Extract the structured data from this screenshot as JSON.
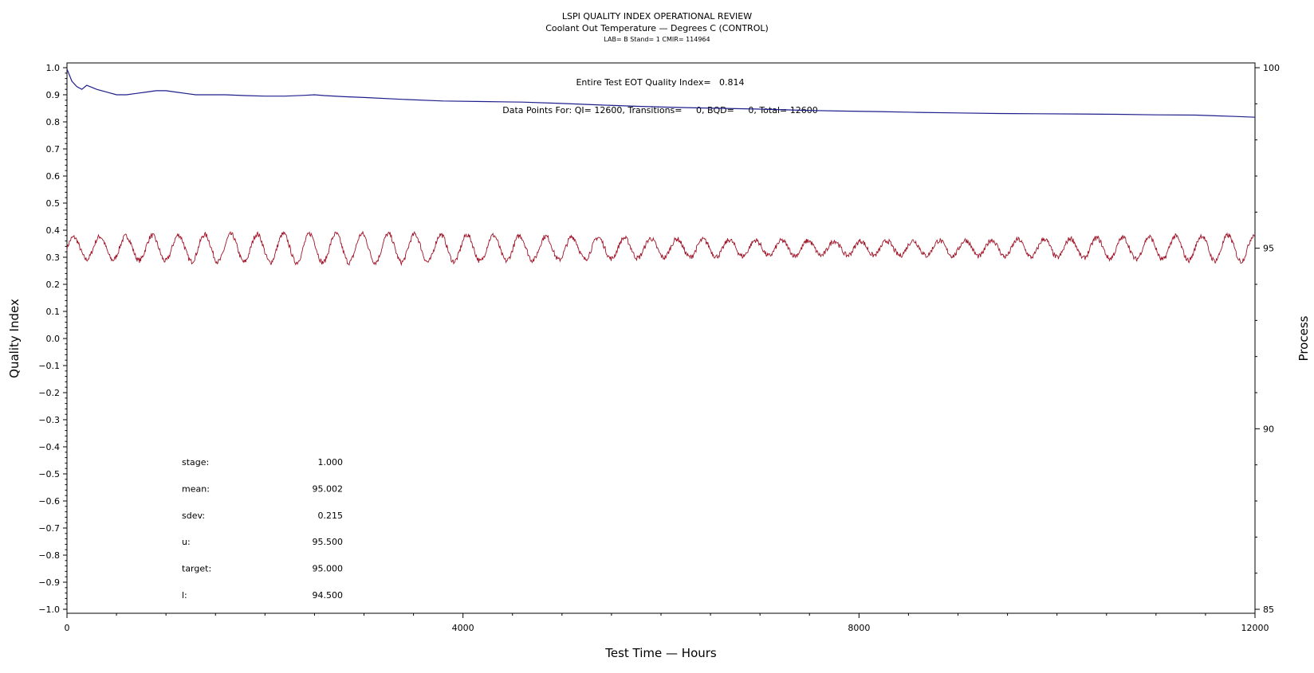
{
  "chart_data": {
    "type": "line",
    "title": "LSPI QUALITY INDEX OPERATIONAL REVIEW",
    "subtitle": "Coolant Out Temperature — Degrees C (CONTROL)",
    "subtitle2": "LAB= B Stand= 1 CMIR= 114964",
    "xlabel": "Test Time — Hours",
    "ylabel": "Quality Index",
    "y2label": "Process",
    "xlim": [
      0,
      12000
    ],
    "ylim": [
      -1.0,
      1.0
    ],
    "y2lim": [
      85,
      100
    ],
    "x_ticks": [
      0,
      4000,
      8000,
      12000
    ],
    "x_tick_labels": [
      "0",
      "4000",
      "8000",
      "12000"
    ],
    "y_ticks": [
      1.0,
      0.9,
      0.8,
      0.7,
      0.6,
      0.5,
      0.4,
      0.3,
      0.2,
      0.1,
      0.0,
      -0.1,
      -0.2,
      -0.3,
      -0.4,
      -0.5,
      -0.6,
      -0.7,
      -0.8,
      -0.9,
      -1.0
    ],
    "y_tick_labels": [
      "1.0",
      "0.9",
      "0.8",
      "0.7",
      "0.6",
      "0.5",
      "0.4",
      "0.3",
      "0.2",
      "0.1",
      "0.0",
      "−0.1",
      "−0.2",
      "−0.3",
      "−0.4",
      "−0.5",
      "−0.6",
      "−0.7",
      "−0.8",
      "−0.9",
      "−1.0"
    ],
    "y2_ticks": [
      100,
      95,
      90,
      85
    ],
    "y2_tick_labels": [
      "100",
      "95",
      "90",
      "85"
    ],
    "grid": false,
    "annotations": {
      "qi_text": "Entire Test EOT Quality Index=   0.814",
      "points_text": "Data Points For: QI= 12600, Transitions=     0, BQD=     0, Total= 12600"
    },
    "stats": [
      {
        "label": "stage:",
        "value": "1.000"
      },
      {
        "label": "mean:",
        "value": "95.002"
      },
      {
        "label": "sdev:",
        "value": "0.215"
      },
      {
        "label": "u:",
        "value": "95.500"
      },
      {
        "label": "target:",
        "value": "95.000"
      },
      {
        "label": "l:",
        "value": "94.500"
      }
    ],
    "series": [
      {
        "axis": "left",
        "color": "#1e1e8c",
        "x": [
          0,
          50,
          100,
          150,
          200,
          300,
          400,
          500,
          600,
          700,
          800,
          900,
          1000,
          1100,
          1200,
          1300,
          1400,
          1600,
          1800,
          2000,
          2200,
          2400,
          2500,
          2600,
          2800,
          3000,
          3400,
          3800,
          4200,
          4600,
          5000,
          5400,
          5800,
          6200,
          6600,
          7000,
          7400,
          7800,
          8200,
          8600,
          9000,
          9400,
          9800,
          10200,
          10600,
          11000,
          11400,
          11800,
          12000
        ],
        "values": [
          0.995,
          0.95,
          0.93,
          0.92,
          0.935,
          0.92,
          0.91,
          0.9,
          0.9,
          0.905,
          0.91,
          0.915,
          0.915,
          0.91,
          0.905,
          0.9,
          0.9,
          0.9,
          0.897,
          0.895,
          0.895,
          0.898,
          0.9,
          0.897,
          0.893,
          0.89,
          0.883,
          0.877,
          0.875,
          0.873,
          0.868,
          0.862,
          0.857,
          0.853,
          0.85,
          0.847,
          0.843,
          0.84,
          0.838,
          0.835,
          0.833,
          0.831,
          0.83,
          0.829,
          0.828,
          0.826,
          0.825,
          0.82,
          0.817
        ]
      },
      {
        "axis": "right",
        "color": "#a01428",
        "x_start": 0,
        "x_end": 12000,
        "mean": 95.002,
        "amplitude": 0.4,
        "period_hours": 265,
        "noise_sdev": 0.07
      }
    ]
  }
}
